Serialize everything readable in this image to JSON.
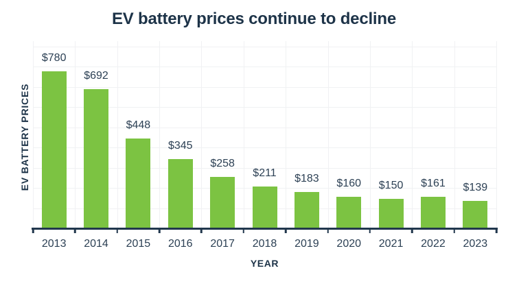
{
  "chart_data": {
    "type": "bar",
    "title": "EV battery prices continue to decline",
    "xlabel": "YEAR",
    "ylabel": "EV BATTERY PRICES",
    "categories": [
      "2013",
      "2014",
      "2015",
      "2016",
      "2017",
      "2018",
      "2019",
      "2020",
      "2021",
      "2022",
      "2023"
    ],
    "values": [
      780,
      692,
      448,
      345,
      258,
      211,
      183,
      160,
      150,
      161,
      139
    ],
    "value_labels": [
      "$780",
      "$692",
      "$448",
      "$345",
      "$258",
      "$211",
      "$183",
      "$160",
      "$150",
      "$161",
      "$139"
    ],
    "value_prefix": "$",
    "ylim": [
      0,
      930
    ],
    "gridline_step": 100,
    "grid": "horizontal-and-vertical",
    "legend": "none",
    "colors": {
      "bar": "#7cc342",
      "title": "#1d3348",
      "value_label": "#2c4054",
      "tick_label": "#2c4054",
      "axis": "#21374d",
      "gridline": "#f0f1f3"
    }
  }
}
